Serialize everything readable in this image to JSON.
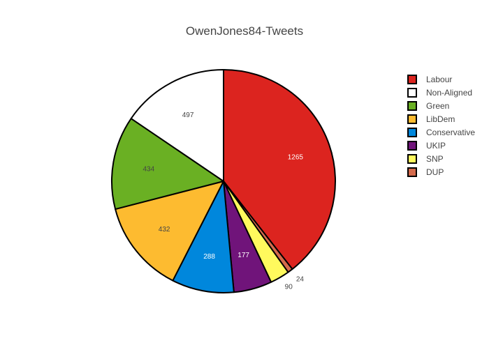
{
  "chart_data": {
    "type": "pie",
    "title": "OwenJones84-Tweets",
    "legend_position": "right",
    "slices": [
      {
        "label": "Labour",
        "value": 1265,
        "color": "#dc241f",
        "label_color": "#ffffff"
      },
      {
        "label": "DUP",
        "value": 24,
        "color": "#d46a4c",
        "label_color": "#444444"
      },
      {
        "label": "SNP",
        "value": 90,
        "color": "#fff95d",
        "label_color": "#444444"
      },
      {
        "label": "UKIP",
        "value": 177,
        "color": "#70147a",
        "label_color": "#ffffff"
      },
      {
        "label": "Conservative",
        "value": 288,
        "color": "#0087dc",
        "label_color": "#ffffff"
      },
      {
        "label": "LibDem",
        "value": 432,
        "color": "#fdbb30",
        "label_color": "#444444"
      },
      {
        "label": "Green",
        "value": 434,
        "color": "#6ab023",
        "label_color": "#444444"
      },
      {
        "label": "Non-Aligned",
        "value": 497,
        "color": "#ffffff",
        "label_color": "#444444"
      }
    ],
    "legend_order": [
      "Labour",
      "Non-Aligned",
      "Green",
      "LibDem",
      "Conservative",
      "UKIP",
      "SNP",
      "DUP"
    ]
  }
}
